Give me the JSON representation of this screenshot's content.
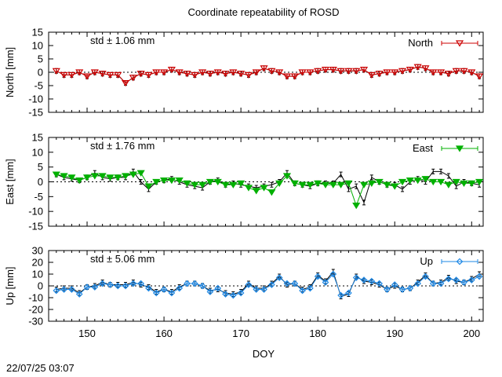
{
  "title": "Coordinate repeatability of ROSD",
  "xlabel": "DOY",
  "timestamp": "22/07/25 03:07",
  "colors": {
    "north": "#cc0000",
    "east": "#00b000",
    "up": "#1e88e5",
    "ref": "#000000"
  },
  "chart_data": [
    {
      "type": "line",
      "component": "north",
      "ylabel": "North [mm]",
      "legend": "North",
      "legend_position": "top-right",
      "annotation": "std ± 1.06 mm",
      "marker": "triangle-down-open",
      "xlim": [
        145,
        201.5
      ],
      "ylim": [
        -15,
        15
      ],
      "xticks": [
        150,
        160,
        170,
        180,
        190,
        200
      ],
      "yticks": [
        15,
        10,
        5,
        0,
        -5,
        -10,
        -15
      ],
      "x": [
        146,
        147,
        148,
        149,
        150,
        151,
        152,
        153,
        154,
        155,
        156,
        157,
        158,
        159,
        160,
        161,
        162,
        163,
        164,
        165,
        166,
        167,
        168,
        169,
        170,
        171,
        172,
        173,
        174,
        175,
        176,
        177,
        178,
        179,
        180,
        181,
        182,
        183,
        184,
        185,
        186,
        187,
        188,
        189,
        190,
        191,
        192,
        193,
        194,
        195,
        196,
        197,
        198,
        199,
        200,
        201
      ],
      "series": [
        {
          "name": "North",
          "values": [
            0.5,
            -1,
            -1,
            0,
            -1.5,
            0,
            -0.5,
            -1,
            -1,
            -4,
            -2,
            -0.5,
            -1,
            0,
            0,
            1,
            0,
            -0.5,
            -1,
            0,
            -0.5,
            0,
            -0.5,
            0,
            -0.5,
            -1,
            0,
            1.5,
            0.5,
            0,
            -1.5,
            -1.5,
            0,
            0,
            0.5,
            1,
            1,
            0.5,
            0.5,
            0.5,
            1,
            -1,
            -0.5,
            0,
            0,
            0.5,
            1,
            2,
            1.5,
            0,
            0,
            -0.5,
            0.5,
            0.5,
            0,
            -1.5
          ]
        },
        {
          "name": "",
          "values": [
            0.5,
            -1,
            -1,
            0,
            -1.5,
            0,
            -0.5,
            -1,
            -1,
            -4,
            -2,
            -0.5,
            -1,
            0,
            0,
            1,
            0,
            -0.5,
            -1,
            0,
            -0.5,
            0,
            -0.5,
            0,
            -0.5,
            -1,
            0,
            1.5,
            0.5,
            0,
            -1.5,
            -1.5,
            0,
            0,
            0.5,
            1,
            1,
            0.5,
            0.5,
            0.5,
            1,
            -1,
            -0.5,
            0,
            0,
            0.5,
            1,
            2,
            1.5,
            0,
            0,
            -0.5,
            0.5,
            0.5,
            0,
            -1.5
          ]
        }
      ]
    },
    {
      "type": "line",
      "component": "east",
      "ylabel": "East [mm]",
      "legend": "East",
      "legend_position": "top-right",
      "annotation": "std ± 1.76 mm",
      "marker": "triangle-down-filled",
      "xlim": [
        145,
        201.5
      ],
      "ylim": [
        -15,
        15
      ],
      "xticks": [
        150,
        160,
        170,
        180,
        190,
        200
      ],
      "yticks": [
        15,
        10,
        5,
        0,
        -5,
        -10,
        -15
      ],
      "x": [
        146,
        147,
        148,
        149,
        150,
        151,
        152,
        153,
        154,
        155,
        156,
        157,
        158,
        159,
        160,
        161,
        162,
        163,
        164,
        165,
        166,
        167,
        168,
        169,
        170,
        171,
        172,
        173,
        174,
        175,
        176,
        177,
        178,
        179,
        180,
        181,
        182,
        183,
        184,
        185,
        186,
        187,
        188,
        189,
        190,
        191,
        192,
        193,
        194,
        195,
        196,
        197,
        198,
        199,
        200,
        201
      ],
      "series": [
        {
          "name": "East",
          "values": [
            2.5,
            2,
            1.5,
            0.5,
            1.5,
            2,
            2,
            1.5,
            1.5,
            2,
            2.5,
            3,
            -1.5,
            0,
            0.5,
            0.5,
            0.5,
            -0.5,
            -1,
            -1,
            0,
            0,
            -1,
            -1,
            -0.5,
            -2,
            -3,
            -2,
            -3.5,
            -0.5,
            2,
            -0.5,
            -1,
            -1,
            -0.5,
            -1,
            -1,
            -1,
            -0.5,
            -8,
            -1,
            -0.5,
            0,
            -1,
            -1.5,
            0,
            0.5,
            0.5,
            1,
            0,
            0,
            -1,
            0,
            -0.5,
            -0.5,
            0
          ]
        },
        {
          "name": "",
          "values": [
            2.5,
            1.5,
            1,
            0.5,
            1.5,
            3,
            1.5,
            1,
            1.5,
            1.5,
            3.5,
            0,
            -2.5,
            0,
            0.5,
            1,
            0,
            -1,
            -1.5,
            -2,
            0,
            0.5,
            -1,
            -0.5,
            -1,
            -1.5,
            -2,
            -1.5,
            -1,
            0,
            3,
            -0.5,
            -1,
            -1.5,
            -0.5,
            -0.5,
            -0.5,
            2.5,
            -2.5,
            -1.5,
            -7,
            1.5,
            0,
            -1,
            -1,
            -2.5,
            0,
            1,
            0,
            3.5,
            3.5,
            2,
            -1.5,
            0,
            -0.5,
            -1
          ]
        }
      ]
    },
    {
      "type": "line",
      "component": "up",
      "ylabel": "Up [mm]",
      "legend": "Up",
      "legend_position": "top-right",
      "annotation": "std ± 5.06 mm",
      "marker": "diamond-open",
      "xlim": [
        145,
        201.5
      ],
      "ylim": [
        -30,
        30
      ],
      "xticks": [
        150,
        160,
        170,
        180,
        190,
        200
      ],
      "yticks": [
        30,
        20,
        10,
        0,
        -10,
        -20,
        -30
      ],
      "x": [
        146,
        147,
        148,
        149,
        150,
        151,
        152,
        153,
        154,
        155,
        156,
        157,
        158,
        159,
        160,
        161,
        162,
        163,
        164,
        165,
        166,
        167,
        168,
        169,
        170,
        171,
        172,
        173,
        174,
        175,
        176,
        177,
        178,
        179,
        180,
        181,
        182,
        183,
        184,
        185,
        186,
        187,
        188,
        189,
        190,
        191,
        192,
        193,
        194,
        195,
        196,
        197,
        198,
        199,
        200,
        201
      ],
      "series": [
        {
          "name": "Up",
          "values": [
            -4,
            -3,
            -3,
            -7,
            -1,
            -1,
            2,
            1,
            0,
            0,
            2,
            2,
            -2,
            -6,
            -3,
            -6,
            -2,
            2,
            2,
            0,
            -5,
            -2,
            -7,
            -8,
            -6,
            1,
            -3,
            -3,
            1,
            7,
            2,
            2,
            -4,
            -2,
            8,
            3,
            10,
            -8,
            -6,
            7,
            5,
            4,
            2,
            -3,
            1,
            -3,
            -2,
            2,
            8,
            2,
            2,
            6,
            5,
            3,
            5,
            8
          ]
        },
        {
          "name": "",
          "values": [
            -3,
            -2,
            -2,
            -6,
            -1,
            0,
            3,
            1,
            1,
            1,
            3,
            1,
            -1,
            -5,
            -3,
            -5,
            -1,
            2,
            2,
            0,
            -4,
            -3,
            -6,
            -7,
            -5,
            2,
            -2,
            -2,
            2,
            8,
            1,
            2,
            -3,
            -1,
            9,
            4,
            12,
            -9,
            -7,
            8,
            4,
            3,
            1,
            -3,
            0,
            -3,
            -2,
            3,
            9,
            2,
            3,
            7,
            4,
            3,
            6,
            10
          ]
        }
      ]
    }
  ]
}
